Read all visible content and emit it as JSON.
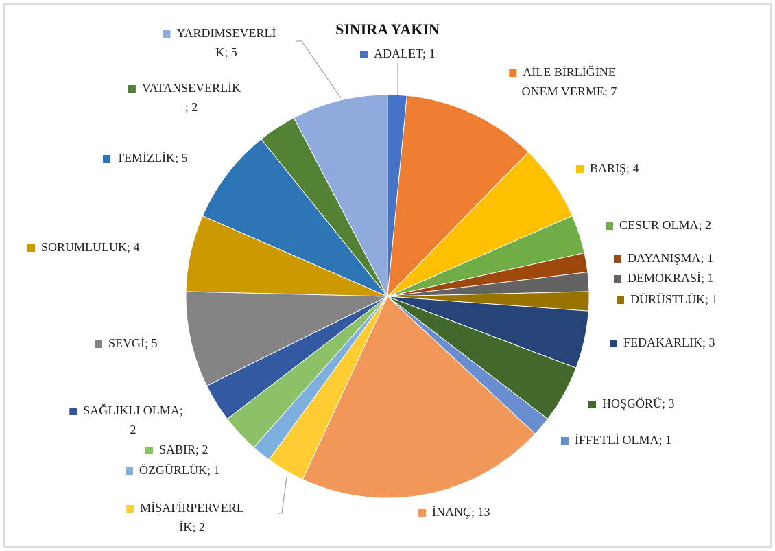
{
  "chart_data": {
    "type": "pie",
    "title": "SINIRA YAKIN",
    "categories": [
      "ADALET",
      "AİLE BİRLİĞİNE ÖNEM VERME",
      "BARIŞ",
      "CESUR OLMA",
      "DAYANIŞMA",
      "DEMOKRASİ",
      "DÜRÜSTLÜK",
      "FEDAKARLIK",
      "HOŞGÖRÜ",
      "İFFETLİ OLMA",
      "İNANÇ",
      "MİSAFİRPERVERLİK",
      "ÖZGÜRLÜK",
      "SABIR",
      "SAĞLIKLI OLMA",
      "SEVGİ",
      "SORUMLULUK",
      "TEMİZLİK",
      "VATANSEVERLİK",
      "YARDIMSEVERLİK"
    ],
    "values": [
      1,
      7,
      4,
      2,
      1,
      1,
      1,
      3,
      3,
      1,
      13,
      2,
      1,
      2,
      2,
      5,
      4,
      5,
      2,
      5
    ],
    "value_labels": [
      "ADALET; 1",
      "AİLE BİRLİĞİNE ÖNEM VERME; 7",
      "BARIŞ; 4",
      "CESUR OLMA; 2",
      "DAYANIŞMA; 1",
      "DEMOKRASİ; 1",
      "DÜRÜSTLÜK; 1",
      "FEDAKARLIK; 3",
      "HOŞGÖRÜ; 3",
      "İFFETLİ OLMA; 1",
      "İNANÇ; 13",
      "MİSAFİRPERVERLİK; 2",
      "ÖZGÜRLÜK; 1",
      "SABIR; 2",
      "SAĞLIKLI OLMA; 2",
      "SEVGİ; 5",
      "SORUMLULUK; 4",
      "TEMİZLİK; 5",
      "VATANSEVERLİK; 2",
      "YARDIMSEVERLİK; 5"
    ],
    "colors": [
      "#4472C4",
      "#ED7D31",
      "#FFC000",
      "#70AD47",
      "#9E480E",
      "#636363",
      "#997300",
      "#264478",
      "#43682B",
      "#698ED0",
      "#F1975A",
      "#FFCD33",
      "#7CAFDD",
      "#8CC168",
      "#335AA1",
      "#848484",
      "#CC9A00",
      "#2E75B6",
      "#548235",
      "#8FAADC"
    ]
  }
}
